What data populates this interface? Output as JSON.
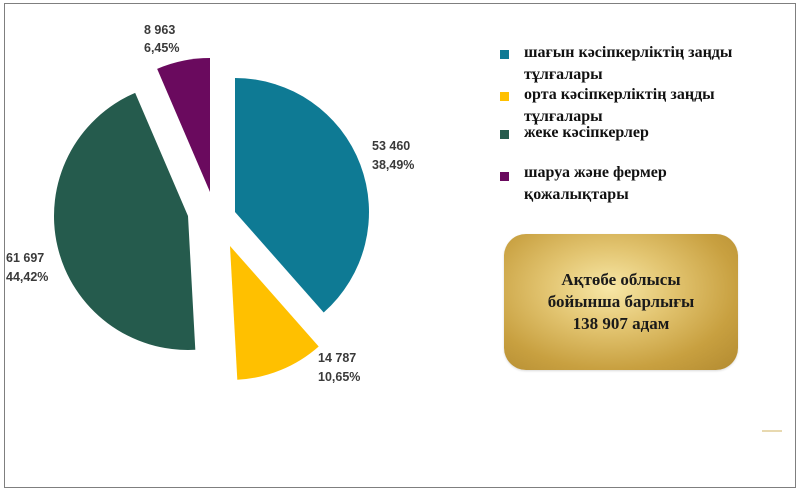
{
  "chart_data": {
    "type": "pie",
    "exploded": true,
    "slices": [
      {
        "name": "шағын кәсіпкерліктің заңды тұлғалары",
        "value": 53460,
        "value_label": "53 460",
        "percent_label": "38,49%",
        "color": "#0e7a94"
      },
      {
        "name": "орта кәсіпкерліктің заңды тұлғалары",
        "value": 14787,
        "value_label": "14 787",
        "percent_label": "10,65%",
        "color": "#ffc000"
      },
      {
        "name": "жеке кәсіпкерлер",
        "value": 61697,
        "value_label": "61 697",
        "percent_label": "44,42%",
        "color": "#255b4d"
      },
      {
        "name": "шаруа және фермер қожалықтары",
        "value": 8963,
        "value_label": "8 963",
        "percent_label": "6,45%",
        "color": "#6a0a5e"
      }
    ],
    "legend_position": "right"
  },
  "legend": [
    {
      "text": "шағын кәсіпкерліктің заңды тұлғалары",
      "color": "#0e7a94"
    },
    {
      "text": "орта кәсіпкерліктің заңды тұлғалары",
      "color": "#ffc000"
    },
    {
      "text": "жеке кәсіпкерлер",
      "color": "#255b4d"
    },
    {
      "text": "шаруа және фермер қожалықтары",
      "color": "#6a0a5e"
    }
  ],
  "total_box": {
    "line1": "Ақтөбе облысы",
    "line2": "бойынша барлығы",
    "line3": "138 907 адам"
  }
}
